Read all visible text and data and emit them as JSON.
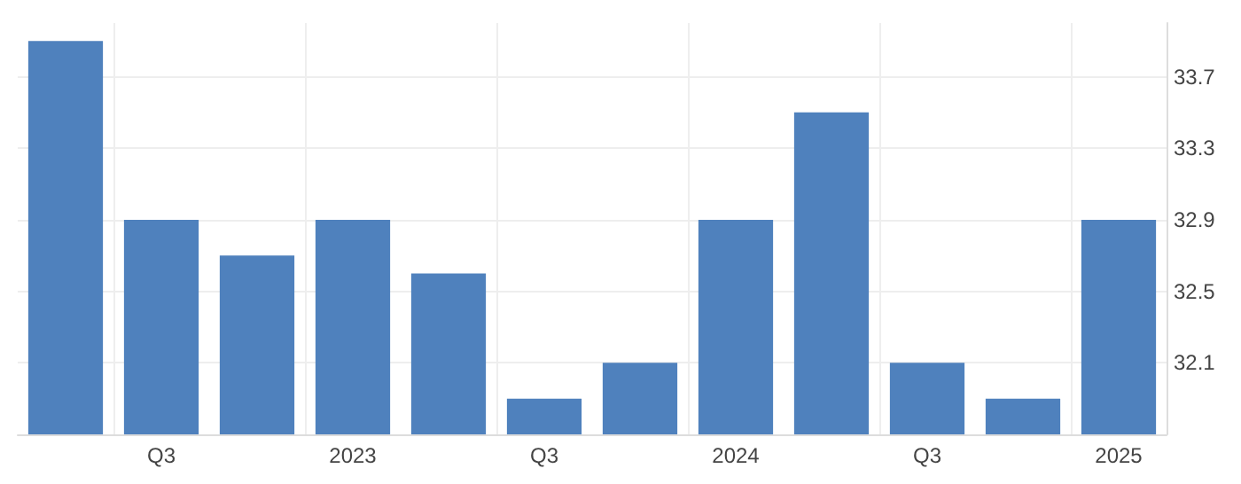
{
  "chart_data": {
    "type": "bar",
    "categories": [
      null,
      "Q3",
      null,
      "2023",
      null,
      "Q3",
      null,
      "2024",
      null,
      "Q3",
      null,
      "2025"
    ],
    "values": [
      33.9,
      32.9,
      32.7,
      32.9,
      32.6,
      31.9,
      32.1,
      32.9,
      33.5,
      32.1,
      31.9,
      32.9
    ],
    "color": "#4f81bd",
    "ylim": [
      31.7,
      34.0
    ],
    "yticks": [
      32.1,
      32.5,
      32.9,
      33.3,
      33.7
    ],
    "grid": true
  }
}
